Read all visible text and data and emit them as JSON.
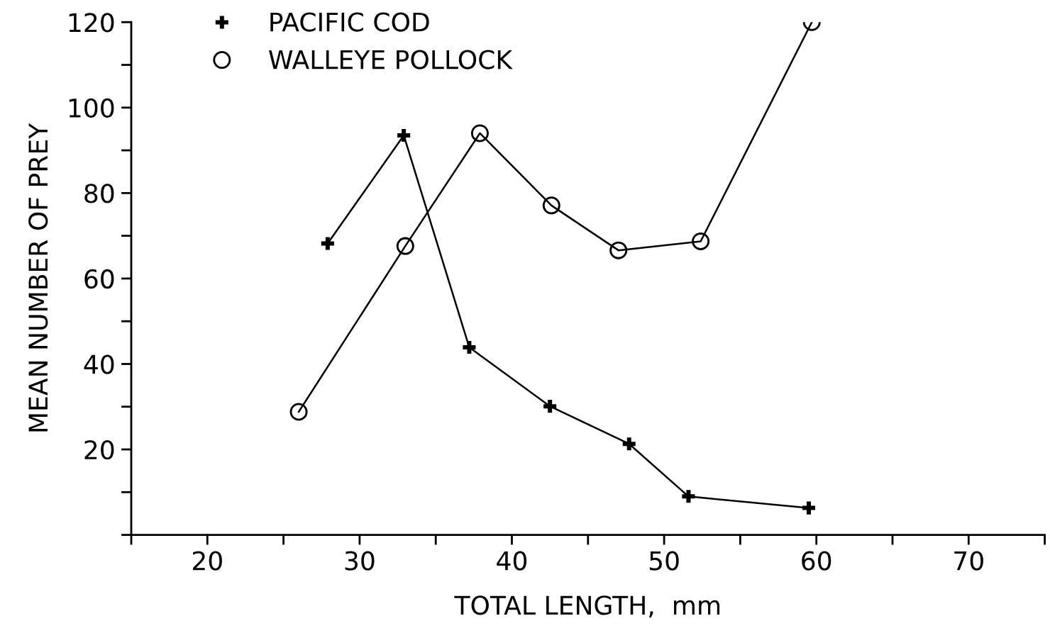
{
  "chart_data": {
    "type": "line",
    "xlabel": "TOTAL LENGTH,  mm",
    "ylabel": "MEAN NUMBER OF PREY",
    "xlim": [
      15,
      75
    ],
    "ylim": [
      0,
      120
    ],
    "xticks": [
      {
        "value": 15,
        "label": null
      },
      20,
      {
        "value": 25,
        "label": null
      },
      30,
      {
        "value": 35,
        "label": null
      },
      40,
      {
        "value": 45,
        "label": null
      },
      50,
      {
        "value": 55,
        "label": null
      },
      60,
      {
        "value": 65,
        "label": null
      },
      70,
      {
        "value": 75,
        "label": null
      }
    ],
    "yticks": [
      {
        "value": 0,
        "label": null
      },
      {
        "value": 10,
        "label": null
      },
      20,
      {
        "value": 30,
        "label": null
      },
      40,
      {
        "value": 50,
        "label": null
      },
      60,
      {
        "value": 70,
        "label": null
      },
      80,
      {
        "value": 90,
        "label": null
      },
      100,
      {
        "value": 110,
        "label": null
      },
      120
    ],
    "grid": false,
    "legend": "top left",
    "line_style": "solid",
    "series": [
      {
        "name": "PACIFIC COD",
        "color": "#000000",
        "marker": "cross",
        "x": [
          27.9,
          32.9,
          37.2,
          42.5,
          47.7,
          51.6,
          59.5
        ],
        "values": [
          68.2,
          93.5,
          43.9,
          30.1,
          21.3,
          9.0,
          6.3
        ]
      },
      {
        "name": "WALLEYE POLLOCK",
        "color": "#000000",
        "marker": "circle",
        "x": [
          26.0,
          33.0,
          37.9,
          42.6,
          47.0,
          52.4,
          59.7
        ],
        "values": [
          28.8,
          67.6,
          94.0,
          77.1,
          66.6,
          68.7,
          120
        ]
      }
    ]
  }
}
